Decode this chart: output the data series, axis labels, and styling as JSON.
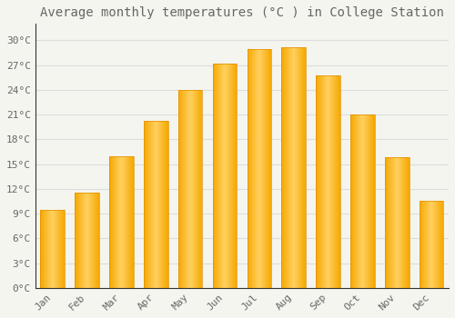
{
  "title": "Average monthly temperatures (°C ) in College Station",
  "months": [
    "Jan",
    "Feb",
    "Mar",
    "Apr",
    "May",
    "Jun",
    "Jul",
    "Aug",
    "Sep",
    "Oct",
    "Nov",
    "Dec"
  ],
  "temperatures": [
    9.5,
    11.5,
    16.0,
    20.2,
    24.0,
    27.2,
    29.0,
    29.2,
    25.7,
    21.0,
    15.8,
    10.5
  ],
  "bar_color_left": "#F5A800",
  "bar_color_center": "#FFD060",
  "bar_color_right": "#F5A800",
  "background_color": "#F5F5F0",
  "grid_color": "#DDDDDD",
  "text_color": "#666666",
  "axis_color": "#333333",
  "ylim": [
    0,
    32
  ],
  "yticks": [
    0,
    3,
    6,
    9,
    12,
    15,
    18,
    21,
    24,
    27,
    30
  ],
  "ytick_labels": [
    "0°C",
    "3°C",
    "6°C",
    "9°C",
    "12°C",
    "15°C",
    "18°C",
    "21°C",
    "24°C",
    "27°C",
    "30°C"
  ],
  "title_fontsize": 10,
  "tick_fontsize": 8,
  "figsize": [
    5.0,
    3.5
  ],
  "dpi": 100
}
